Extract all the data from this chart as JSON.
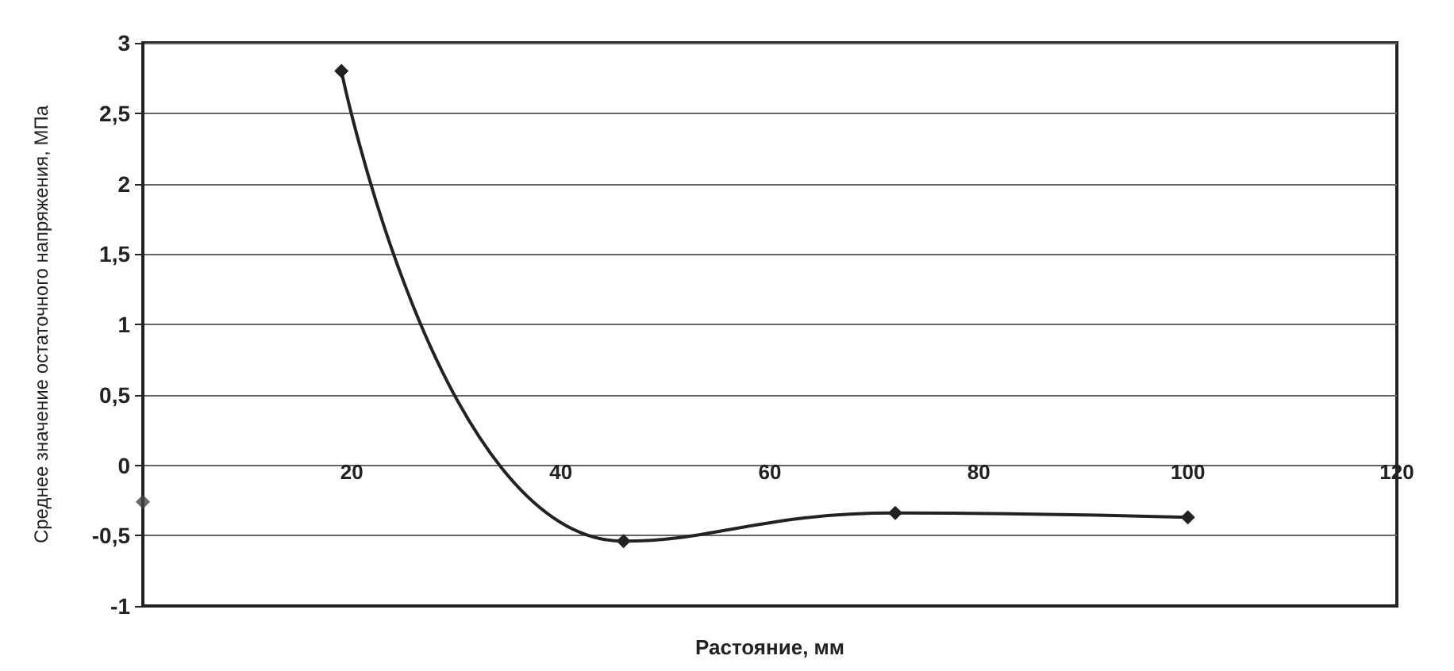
{
  "chart_data": {
    "type": "line",
    "xlabel": "Растояние, мм",
    "ylabel": "Среднее значение остаточного напряжения, МПа",
    "xlim": [
      0,
      120
    ],
    "xticks": [
      20,
      40,
      60,
      80,
      100,
      120
    ],
    "ylim": [
      -1,
      3
    ],
    "yticks": [
      -1,
      {
        "value": -0.5,
        "label": "-0,5"
      },
      0,
      {
        "value": 0.5,
        "label": "0,5"
      },
      1,
      {
        "value": 1.5,
        "label": "1,5"
      },
      2,
      {
        "value": 2.5,
        "label": "2,5"
      },
      3
    ],
    "grid": "y",
    "marker": "diamond",
    "line_style": "solid",
    "series": [
      {
        "color": "#222222",
        "x": [
          19,
          46,
          72,
          100
        ],
        "values": [
          2.8,
          -0.54,
          -0.34,
          -0.37
        ]
      },
      {
        "type": "scatter",
        "color": "#444444",
        "x": [
          0
        ],
        "values": [
          -0.26
        ]
      }
    ]
  }
}
